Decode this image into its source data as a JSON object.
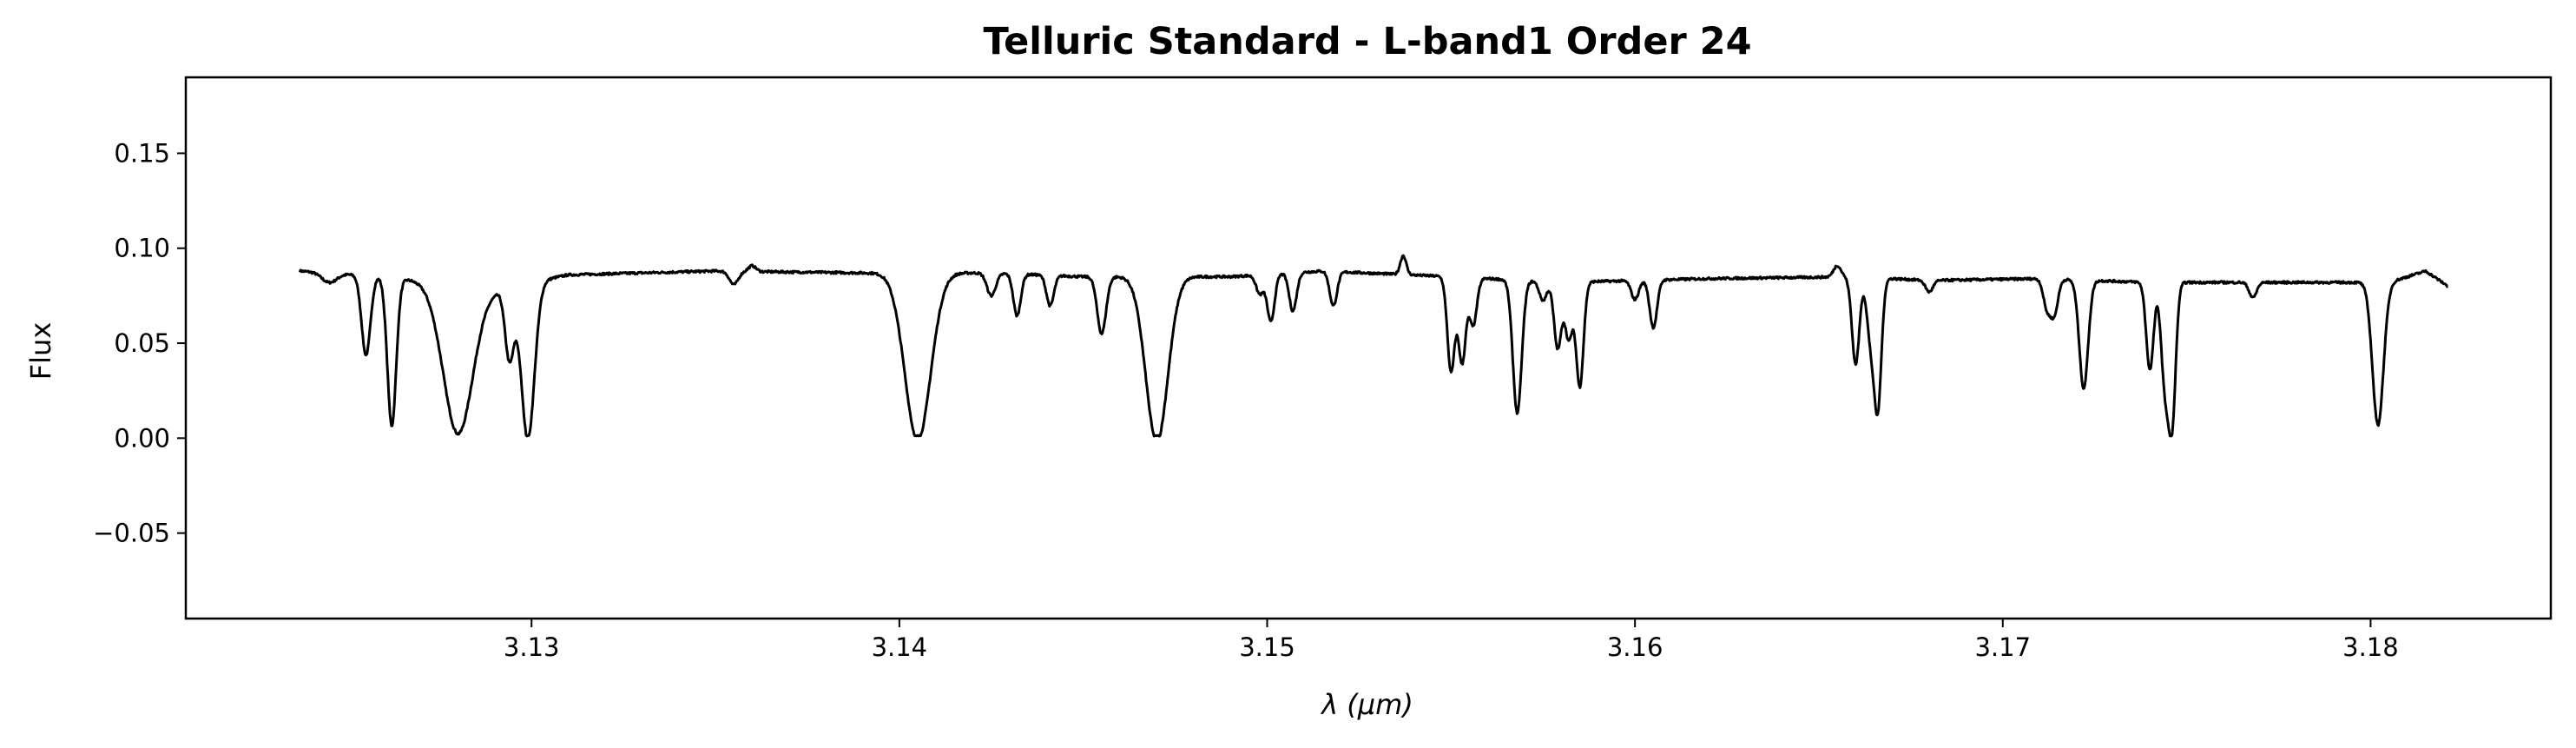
{
  "chart_data": {
    "type": "line",
    "title": "Telluric Standard - L-band1 Order 24",
    "xlabel": "λ (μm)",
    "ylabel": "Flux",
    "xlim": [
      3.1206,
      3.1849
    ],
    "ylim": [
      -0.095,
      0.19
    ],
    "xticks": [
      3.13,
      3.14,
      3.15,
      3.16,
      3.17,
      3.18
    ],
    "xtick_labels": [
      "3.13",
      "3.14",
      "3.15",
      "3.16",
      "3.17",
      "3.18"
    ],
    "yticks": [
      -0.05,
      0.0,
      0.05,
      0.1,
      0.15
    ],
    "ytick_labels": [
      "−0.05",
      "0.00",
      "0.05",
      "0.10",
      "0.15"
    ],
    "grid": false,
    "series": [
      {
        "color": "#000000",
        "x_range": [
          3.1237,
          3.1821
        ],
        "continuum": [
          [
            3.1237,
            0.088
          ],
          [
            3.126,
            0.085
          ],
          [
            3.129,
            0.078
          ],
          [
            3.131,
            0.086
          ],
          [
            3.135,
            0.088
          ],
          [
            3.139,
            0.087
          ],
          [
            3.1425,
            0.087
          ],
          [
            3.145,
            0.085
          ],
          [
            3.149,
            0.085
          ],
          [
            3.1515,
            0.088
          ],
          [
            3.155,
            0.085
          ],
          [
            3.158,
            0.082
          ],
          [
            3.162,
            0.084
          ],
          [
            3.166,
            0.085
          ],
          [
            3.168,
            0.083
          ],
          [
            3.171,
            0.084
          ],
          [
            3.174,
            0.082
          ],
          [
            3.178,
            0.082
          ],
          [
            3.1805,
            0.082
          ],
          [
            3.1815,
            0.088
          ],
          [
            3.1821,
            0.08
          ]
        ],
        "absorption_lines": [
          {
            "x": 3.1245,
            "depth": 0.005,
            "width": 0.0002
          },
          {
            "x": 3.1255,
            "depth": 0.042,
            "width": 0.00012
          },
          {
            "x": 3.1262,
            "depth": 0.078,
            "width": 0.00012
          },
          {
            "x": 3.128,
            "depth": 0.078,
            "width": 0.0004
          },
          {
            "x": 3.1294,
            "depth": 0.038,
            "width": 0.00012
          },
          {
            "x": 3.1299,
            "depth": 0.082,
            "width": 0.00018
          },
          {
            "x": 3.1355,
            "depth": 0.007,
            "width": 0.00012
          },
          {
            "x": 3.1405,
            "depth": 0.088,
            "width": 0.00035
          },
          {
            "x": 3.1425,
            "depth": 0.012,
            "width": 0.00012
          },
          {
            "x": 3.1432,
            "depth": 0.022,
            "width": 0.0001
          },
          {
            "x": 3.1441,
            "depth": 0.016,
            "width": 0.0001
          },
          {
            "x": 3.1455,
            "depth": 0.03,
            "width": 0.00012
          },
          {
            "x": 3.147,
            "depth": 0.087,
            "width": 0.0003
          },
          {
            "x": 3.1498,
            "depth": 0.01,
            "width": 0.0001
          },
          {
            "x": 3.1501,
            "depth": 0.025,
            "width": 0.0001
          },
          {
            "x": 3.1507,
            "depth": 0.02,
            "width": 0.0001
          },
          {
            "x": 3.1518,
            "depth": 0.018,
            "width": 0.0001
          },
          {
            "x": 3.155,
            "depth": 0.05,
            "width": 0.0001
          },
          {
            "x": 3.1553,
            "depth": 0.045,
            "width": 0.0001
          },
          {
            "x": 3.1556,
            "depth": 0.025,
            "width": 0.0001
          },
          {
            "x": 3.1568,
            "depth": 0.07,
            "width": 0.00012
          },
          {
            "x": 3.1575,
            "depth": 0.01,
            "width": 0.0001
          },
          {
            "x": 3.1579,
            "depth": 0.035,
            "width": 0.0001
          },
          {
            "x": 3.1582,
            "depth": 0.03,
            "width": 0.0001
          },
          {
            "x": 3.1585,
            "depth": 0.055,
            "width": 0.0001
          },
          {
            "x": 3.16,
            "depth": 0.01,
            "width": 0.0001
          },
          {
            "x": 3.1605,
            "depth": 0.025,
            "width": 0.0001
          },
          {
            "x": 3.166,
            "depth": 0.046,
            "width": 0.0001
          },
          {
            "x": 3.1664,
            "depth": 0.03,
            "width": 0.0001
          },
          {
            "x": 3.1666,
            "depth": 0.068,
            "width": 0.0001
          },
          {
            "x": 3.168,
            "depth": 0.006,
            "width": 0.0001
          },
          {
            "x": 3.1712,
            "depth": 0.015,
            "width": 0.0001
          },
          {
            "x": 3.1714,
            "depth": 0.018,
            "width": 0.0001
          },
          {
            "x": 3.1722,
            "depth": 0.057,
            "width": 0.00012
          },
          {
            "x": 3.174,
            "depth": 0.046,
            "width": 0.0001
          },
          {
            "x": 3.1744,
            "depth": 0.05,
            "width": 0.0001
          },
          {
            "x": 3.1746,
            "depth": 0.074,
            "width": 0.0001
          },
          {
            "x": 3.1768,
            "depth": 0.008,
            "width": 0.0001
          },
          {
            "x": 3.1802,
            "depth": 0.075,
            "width": 0.00015
          }
        ],
        "emission_spikes": [
          {
            "x": 3.1537,
            "height": 0.01,
            "width": 8e-05
          },
          {
            "x": 3.1655,
            "height": 0.006,
            "width": 0.0001
          },
          {
            "x": 3.136,
            "height": 0.003,
            "width": 0.0001
          }
        ],
        "noise": 0.0012
      }
    ]
  }
}
